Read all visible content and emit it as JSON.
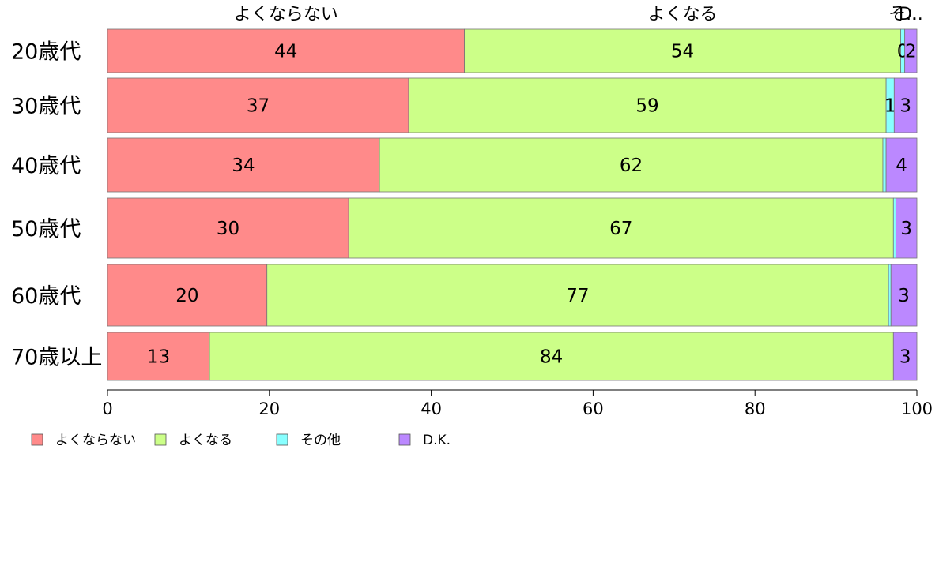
{
  "chart_data": {
    "type": "bar",
    "orientation": "horizontal",
    "stacked": true,
    "categories": [
      "20歳代",
      "30歳代",
      "40歳代",
      "50歳代",
      "60歳代",
      "70歳以上"
    ],
    "series": [
      {
        "name": "よくならない",
        "color": "#FF8A8A",
        "values": [
          44.1,
          37.2,
          33.6,
          29.8,
          19.7,
          12.6
        ],
        "labels": [
          "44",
          "37",
          "34",
          "30",
          "20",
          "13"
        ]
      },
      {
        "name": "よくなる",
        "color": "#CCFF88",
        "values": [
          53.9,
          59.0,
          62.2,
          67.3,
          76.8,
          84.5
        ],
        "labels": [
          "54",
          "59",
          "62",
          "67",
          "77",
          "84"
        ]
      },
      {
        "name": "その他",
        "color": "#88FFFF",
        "values": [
          0.5,
          1.0,
          0.4,
          0.3,
          0.3,
          0.0
        ],
        "labels": [
          "0",
          "1",
          "",
          "",
          "",
          ""
        ]
      },
      {
        "name": "D.K.",
        "color": "#BB88FF",
        "values": [
          1.5,
          2.8,
          3.8,
          2.6,
          3.2,
          2.9
        ],
        "labels": [
          "2",
          "3",
          "4",
          "3",
          "3",
          "3"
        ]
      }
    ],
    "top_labels": [
      "よくならない",
      "よくなる",
      "その他",
      "D.K."
    ],
    "xlim": [
      0,
      100
    ],
    "xticks": [
      0,
      20,
      40,
      60,
      80,
      100
    ],
    "legend": "bottom-left",
    "grid": false,
    "title": "",
    "xlabel": "",
    "ylabel": ""
  }
}
